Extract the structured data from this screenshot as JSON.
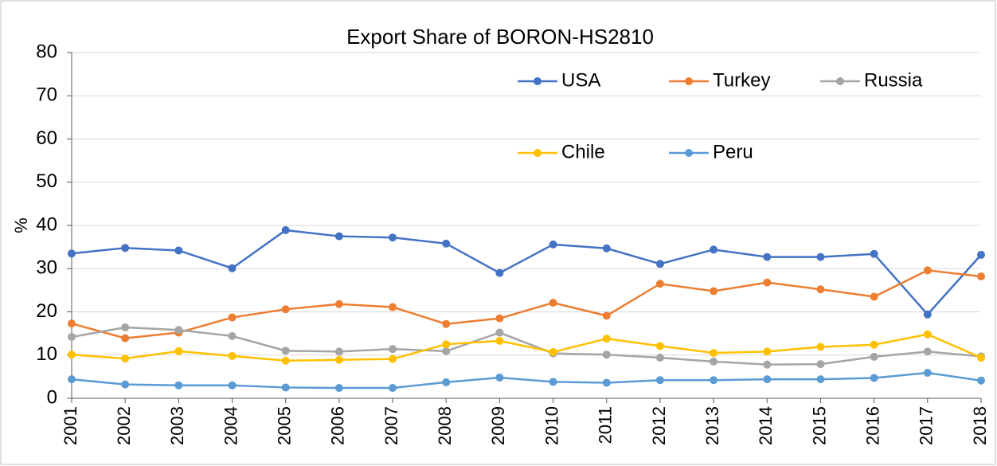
{
  "chart_data": {
    "type": "line",
    "title": "Export Share of BORON-HS2810",
    "y_label": "%",
    "categories": [
      "2001",
      "2002",
      "2003",
      "2004",
      "2005",
      "2006",
      "2007",
      "2008",
      "2009",
      "2010",
      "2011",
      "2012",
      "2013",
      "2014",
      "2015",
      "2016",
      "2017",
      "2018"
    ],
    "series": [
      {
        "name": "USA",
        "color": "#4472c4",
        "values": [
          33.5,
          34.8,
          34.2,
          30.1,
          38.9,
          37.5,
          37.2,
          35.8,
          29.0,
          35.6,
          34.7,
          31.1,
          34.4,
          32.7,
          32.7,
          33.4,
          19.4,
          33.2
        ]
      },
      {
        "name": "Turkey",
        "color": "#ed7d31",
        "values": [
          17.3,
          13.9,
          15.2,
          18.7,
          20.6,
          21.8,
          21.1,
          17.2,
          18.5,
          22.1,
          19.1,
          26.5,
          24.8,
          26.8,
          25.2,
          23.5,
          29.6,
          28.2
        ]
      },
      {
        "name": "Russia",
        "color": "#a5a5a5",
        "values": [
          14.2,
          16.4,
          15.8,
          14.4,
          11.0,
          10.8,
          11.4,
          10.9,
          15.2,
          10.4,
          10.1,
          9.4,
          8.5,
          7.8,
          7.9,
          9.6,
          10.8,
          9.7
        ]
      },
      {
        "name": "Chile",
        "color": "#ffc000",
        "values": [
          10.1,
          9.2,
          10.9,
          9.8,
          8.7,
          8.9,
          9.1,
          12.5,
          13.3,
          10.7,
          13.8,
          12.1,
          10.5,
          10.8,
          11.9,
          12.4,
          14.8,
          9.4
        ]
      },
      {
        "name": "Peru",
        "color": "#5b9bd5",
        "values": [
          4.4,
          3.2,
          3.0,
          3.0,
          2.5,
          2.4,
          2.4,
          3.7,
          4.8,
          3.8,
          3.6,
          4.2,
          4.2,
          4.4,
          4.4,
          4.7,
          5.9,
          4.1
        ]
      }
    ],
    "ylim": [
      0,
      80
    ],
    "yticks": [
      0,
      10,
      20,
      30,
      40,
      50,
      60,
      70,
      80
    ],
    "grid": true,
    "legend": "upper right"
  }
}
